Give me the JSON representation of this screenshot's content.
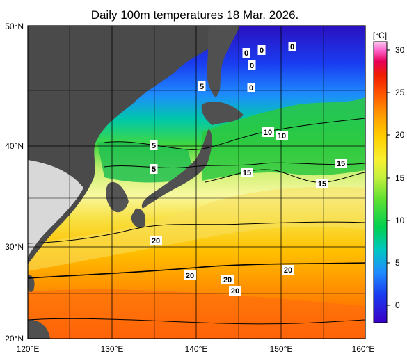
{
  "title": "Daily 100m temperatures 18 Mar. 2026.",
  "colorbar": {
    "unit": "[°C]",
    "ticks": [
      "0",
      "5",
      "10",
      "15",
      "20",
      "25",
      "30"
    ],
    "colors": [
      "#3a00c8",
      "#1a3cf0",
      "#1e8cff",
      "#00c8c0",
      "#00d050",
      "#60e030",
      "#c8f03c",
      "#f8f030",
      "#ffd000",
      "#ff9a00",
      "#ff5000",
      "#f01e00",
      "#e8005a",
      "#ff66cc",
      "#ffc8f0"
    ]
  },
  "axes": {
    "lat_labels": [
      "50°N",
      "40°N",
      "30°N",
      "20°N"
    ],
    "lon_labels": [
      "120°E",
      "130°E",
      "140°E",
      "150°E",
      "160°E"
    ]
  },
  "contour_labels": [
    "0",
    "0",
    "0",
    "0",
    "0",
    "5",
    "5",
    "10",
    "5",
    "10",
    "15",
    "15",
    "15",
    "20",
    "20",
    "20",
    "20",
    "20"
  ],
  "colors": {
    "land": "#4a4a4a",
    "land_light": "#d8d8d8",
    "grid": "#000000"
  }
}
